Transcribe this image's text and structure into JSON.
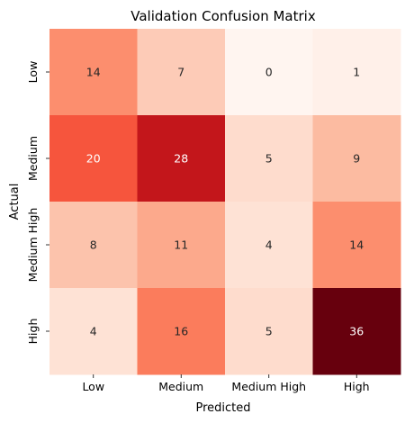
{
  "chart_data": {
    "type": "heatmap",
    "title": "Validation Confusion Matrix",
    "xlabel": "Predicted",
    "ylabel": "Actual",
    "x_categories": [
      "Low",
      "Medium",
      "Medium High",
      "High"
    ],
    "y_categories": [
      "Low",
      "Medium",
      "Medium High",
      "High"
    ],
    "values": [
      [
        14,
        7,
        0,
        1
      ],
      [
        20,
        28,
        5,
        9
      ],
      [
        8,
        11,
        4,
        14
      ],
      [
        4,
        16,
        5,
        36
      ]
    ],
    "colormap": "Reds",
    "value_range": [
      0,
      36
    ],
    "colorbar": false,
    "grid": false
  }
}
